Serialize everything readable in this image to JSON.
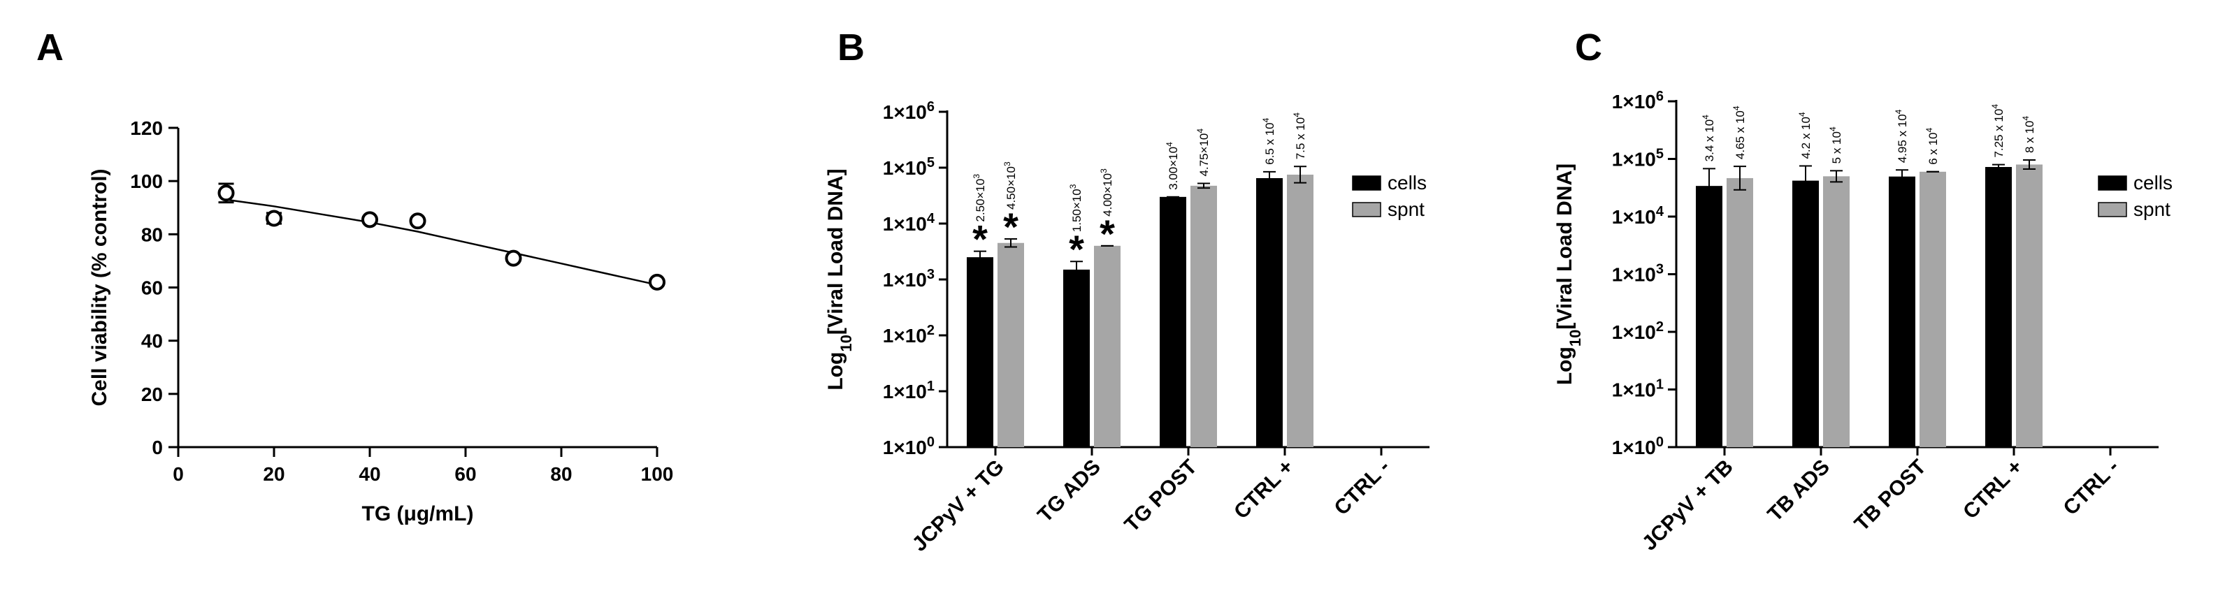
{
  "colors": {
    "cells": "#000000",
    "spnt": "#a6a6a6",
    "axis": "#000000"
  },
  "chart_data": [
    {
      "panel": "A",
      "type": "scatter",
      "xlabel": "TG (μg/mL)",
      "ylabel": "Cell viability (% control)",
      "xlim": [
        0,
        100
      ],
      "ylim": [
        0,
        120
      ],
      "xticks": [
        "0",
        "20",
        "40",
        "60",
        "80",
        "100"
      ],
      "yticks": [
        "0",
        "20",
        "40",
        "60",
        "80",
        "100",
        "120"
      ],
      "points": [
        {
          "x": 10,
          "y": 95.5,
          "err": 3.5
        },
        {
          "x": 20,
          "y": 86,
          "err": 2
        },
        {
          "x": 40,
          "y": 85.5,
          "err": 1
        },
        {
          "x": 50,
          "y": 85,
          "err": 1
        },
        {
          "x": 70,
          "y": 71,
          "err": 1
        },
        {
          "x": 100,
          "y": 62,
          "err": 1
        }
      ],
      "fit": [
        {
          "x": 10,
          "y": 93
        },
        {
          "x": 20,
          "y": 90.5
        },
        {
          "x": 30,
          "y": 87.5
        },
        {
          "x": 40,
          "y": 84.5
        },
        {
          "x": 50,
          "y": 81
        },
        {
          "x": 60,
          "y": 77
        },
        {
          "x": 70,
          "y": 73
        },
        {
          "x": 80,
          "y": 69
        },
        {
          "x": 90,
          "y": 65
        },
        {
          "x": 100,
          "y": 61
        }
      ]
    },
    {
      "panel": "B",
      "type": "bar",
      "scale": "log",
      "ylabel_main": "Log",
      "ylabel_sub": "10",
      "ylabel_rest": "[Viral Load DNA]",
      "ylim": [
        1,
        1000000
      ],
      "yticks": [
        {
          "base": "1×10",
          "exp": "0"
        },
        {
          "base": "1×10",
          "exp": "1"
        },
        {
          "base": "1×10",
          "exp": "2"
        },
        {
          "base": "1×10",
          "exp": "3"
        },
        {
          "base": "1×10",
          "exp": "4"
        },
        {
          "base": "1×10",
          "exp": "5"
        },
        {
          "base": "1×10",
          "exp": "6"
        }
      ],
      "categories": [
        "JCPyV + TG",
        "TG ADS",
        "TG POST",
        "CTRL +",
        "CTRL -"
      ],
      "legend": [
        "cells",
        "spnt"
      ],
      "series": [
        {
          "name": "cells",
          "values": [
            2500,
            1500,
            30000,
            65000,
            null
          ],
          "labels": [
            {
              "b": "2.50×10",
              "e": "3"
            },
            {
              "b": "1.50×10",
              "e": "3"
            },
            {
              "b": "3.00×10",
              "e": "4"
            },
            {
              "b": "6.5 x 10",
              "e": "4"
            },
            null
          ],
          "err": [
            1.28,
            1.4,
            1.0,
            1.3,
            null
          ],
          "star": [
            true,
            true,
            false,
            false,
            false
          ]
        },
        {
          "name": "spnt",
          "values": [
            4500,
            4000,
            47500,
            75000,
            null
          ],
          "labels": [
            {
              "b": "4.50×10",
              "e": "3"
            },
            {
              "b": "4.00×10",
              "e": "3"
            },
            {
              "b": "4.75×10",
              "e": "4"
            },
            {
              "b": "7.5 x 10",
              "e": "4"
            },
            null
          ],
          "err": [
            1.18,
            1.0,
            1.1,
            1.4,
            null
          ],
          "star": [
            true,
            true,
            false,
            false,
            false
          ]
        }
      ],
      "star_symbol": "*"
    },
    {
      "panel": "C",
      "type": "bar",
      "scale": "log",
      "ylabel_main": "Log",
      "ylabel_sub": "10",
      "ylabel_rest": "[Viral Load DNA]",
      "ylim": [
        1,
        1000000
      ],
      "yticks": [
        {
          "base": "1×10",
          "exp": "0"
        },
        {
          "base": "1×10",
          "exp": "1"
        },
        {
          "base": "1×10",
          "exp": "2"
        },
        {
          "base": "1×10",
          "exp": "3"
        },
        {
          "base": "1×10",
          "exp": "4"
        },
        {
          "base": "1×10",
          "exp": "5"
        },
        {
          "base": "1×10",
          "exp": "6"
        }
      ],
      "categories": [
        "JCPyV + TB",
        "TB ADS",
        "TB POST",
        "CTRL +",
        "CTRL -"
      ],
      "legend": [
        "cells",
        "spnt"
      ],
      "series": [
        {
          "name": "cells",
          "values": [
            34000,
            42000,
            49500,
            72500,
            null
          ],
          "labels": [
            {
              "b": "3.4 x 10",
              "e": "4"
            },
            {
              "b": "4.2 x 10",
              "e": "4"
            },
            {
              "b": "4.95 x 10",
              "e": "4"
            },
            {
              "b": "7.25 x 10",
              "e": "4"
            },
            null
          ],
          "err": [
            2.0,
            1.8,
            1.3,
            1.1,
            null
          ],
          "star": [
            false,
            false,
            false,
            false,
            false
          ]
        },
        {
          "name": "spnt",
          "values": [
            46500,
            50000,
            60000,
            80000,
            null
          ],
          "labels": [
            {
              "b": "4.65 x 10",
              "e": "4"
            },
            {
              "b": "5 x 10",
              "e": "4"
            },
            {
              "b": "6 x 10",
              "e": "4"
            },
            {
              "b": "8 x 10",
              "e": "4"
            },
            null
          ],
          "err": [
            1.6,
            1.25,
            1.0,
            1.2,
            null
          ],
          "star": [
            false,
            false,
            false,
            false,
            false
          ]
        }
      ],
      "star_symbol": ""
    }
  ]
}
